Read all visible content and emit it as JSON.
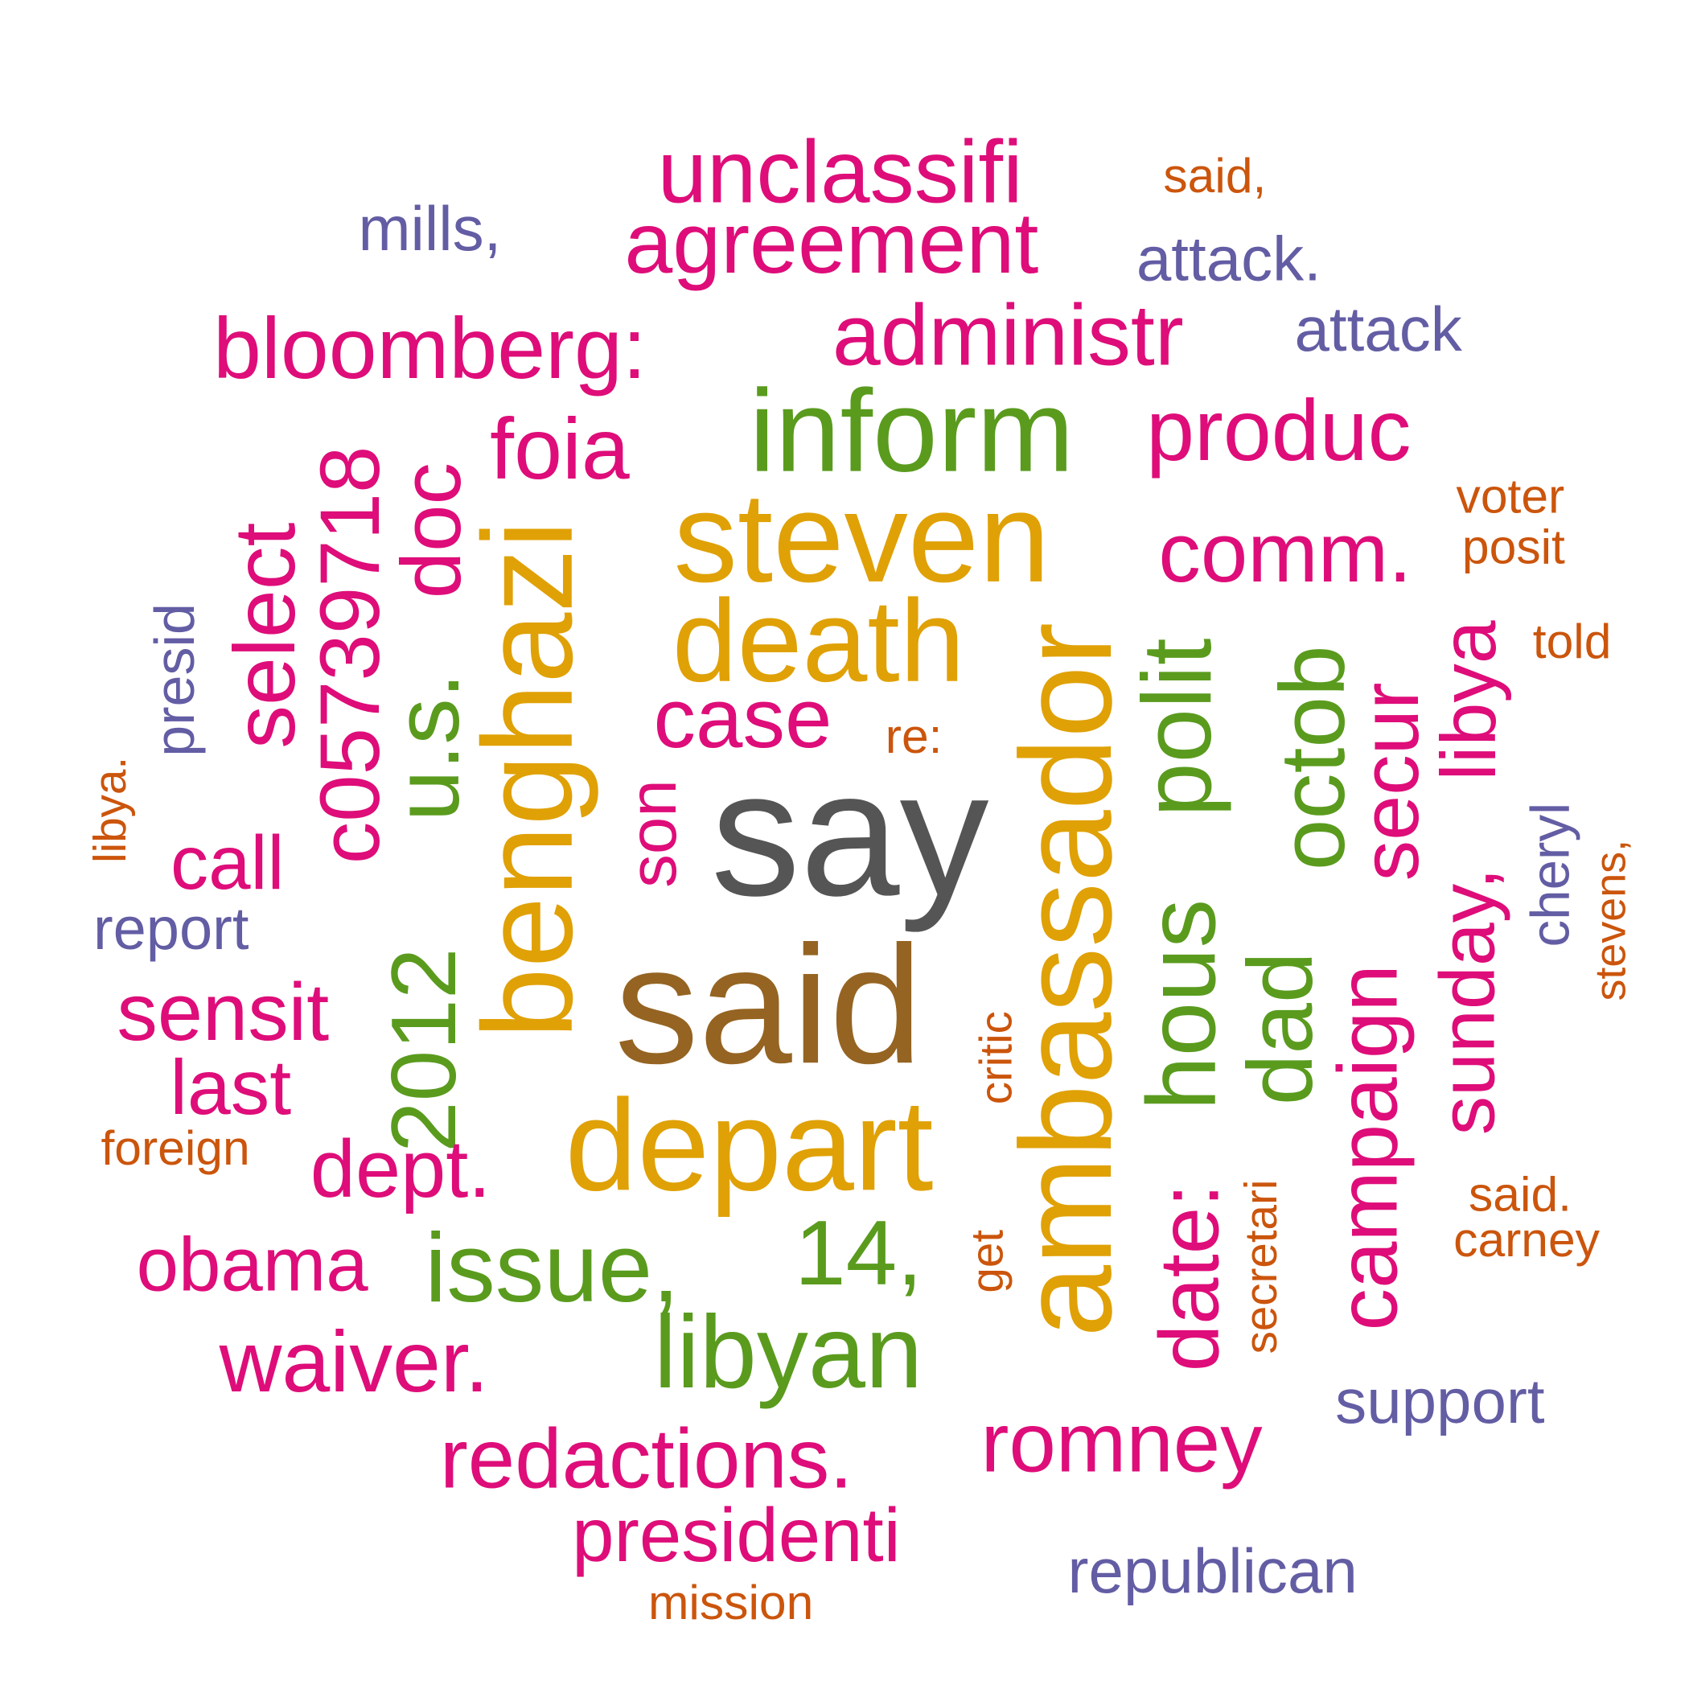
{
  "words": [
    {
      "text": "say",
      "color": "dark"
    },
    {
      "text": "said",
      "color": "brown"
    },
    {
      "text": "depart",
      "color": "gold"
    },
    {
      "text": "ambassador",
      "color": "gold"
    },
    {
      "text": "steven",
      "color": "gold"
    },
    {
      "text": "benghazi",
      "color": "gold"
    },
    {
      "text": "death",
      "color": "gold"
    },
    {
      "text": "inform",
      "color": "green"
    },
    {
      "text": "libyan",
      "color": "green"
    },
    {
      "text": "issue,",
      "color": "green"
    },
    {
      "text": "hous",
      "color": "green"
    },
    {
      "text": "polit",
      "color": "green"
    },
    {
      "text": "octob",
      "color": "green"
    },
    {
      "text": "dad",
      "color": "green"
    },
    {
      "text": "14,",
      "color": "green"
    },
    {
      "text": "2012",
      "color": "green"
    },
    {
      "text": "u.s.",
      "color": "green"
    },
    {
      "text": "unclassifi",
      "color": "pink"
    },
    {
      "text": "agreement",
      "color": "pink"
    },
    {
      "text": "bloomberg:",
      "color": "pink"
    },
    {
      "text": "administr",
      "color": "pink"
    },
    {
      "text": "produc",
      "color": "pink"
    },
    {
      "text": "comm.",
      "color": "pink"
    },
    {
      "text": "case",
      "color": "pink"
    },
    {
      "text": "foia",
      "color": "pink"
    },
    {
      "text": "doc",
      "color": "pink"
    },
    {
      "text": "c05739718",
      "color": "pink"
    },
    {
      "text": "select",
      "color": "pink"
    },
    {
      "text": "secur",
      "color": "pink"
    },
    {
      "text": "libya",
      "color": "pink"
    },
    {
      "text": "sunday,",
      "color": "pink"
    },
    {
      "text": "campaign",
      "color": "pink"
    },
    {
      "text": "date:",
      "color": "pink"
    },
    {
      "text": "son",
      "color": "pink"
    },
    {
      "text": "call",
      "color": "pink"
    },
    {
      "text": "sensit",
      "color": "pink"
    },
    {
      "text": "last",
      "color": "pink"
    },
    {
      "text": "dept.",
      "color": "pink"
    },
    {
      "text": "obama",
      "color": "pink"
    },
    {
      "text": "waiver.",
      "color": "pink"
    },
    {
      "text": "redactions.",
      "color": "pink"
    },
    {
      "text": "presidenti",
      "color": "pink"
    },
    {
      "text": "romney",
      "color": "pink"
    },
    {
      "text": "said,",
      "color": "orange"
    },
    {
      "text": "voter",
      "color": "orange"
    },
    {
      "text": "posit",
      "color": "orange"
    },
    {
      "text": "told",
      "color": "orange"
    },
    {
      "text": "re:",
      "color": "orange"
    },
    {
      "text": "libya.",
      "color": "orange"
    },
    {
      "text": "critic",
      "color": "orange"
    },
    {
      "text": "stevens,",
      "color": "orange"
    },
    {
      "text": "foreign",
      "color": "orange"
    },
    {
      "text": "get",
      "color": "orange"
    },
    {
      "text": "secretari",
      "color": "orange"
    },
    {
      "text": "said.",
      "color": "orange"
    },
    {
      "text": "carney",
      "color": "orange"
    },
    {
      "text": "mission",
      "color": "orange"
    },
    {
      "text": "mills,",
      "color": "purple"
    },
    {
      "text": "attack.",
      "color": "purple"
    },
    {
      "text": "attack",
      "color": "purple"
    },
    {
      "text": "presid",
      "color": "purple"
    },
    {
      "text": "report",
      "color": "purple"
    },
    {
      "text": "cheryl",
      "color": "purple"
    },
    {
      "text": "support",
      "color": "purple"
    },
    {
      "text": "republican",
      "color": "purple"
    }
  ],
  "palette": {
    "dark": "#555555",
    "brown": "#956422",
    "gold": "#E0A106",
    "green": "#5A9B1E",
    "pink": "#DE0D79",
    "orange": "#CB550C",
    "purple": "#635DA4"
  }
}
